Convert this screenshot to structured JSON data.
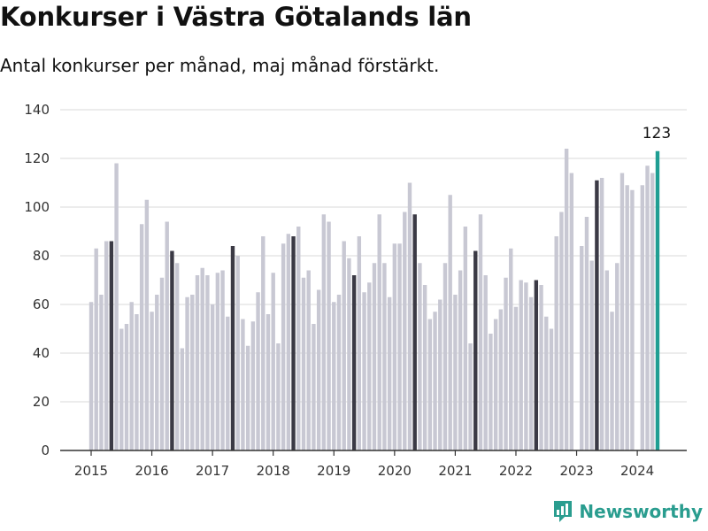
{
  "header": {
    "title": "Konkurser i Västra Götalands län",
    "subtitle": "Antal konkurser per månad, maj månad förstärkt."
  },
  "brand": {
    "name": "Newsworthy"
  },
  "colors": {
    "regular": "#c8c8d3",
    "highlight_may": "#3b3a45",
    "latest": "#1f9e93",
    "grid": "#d9d9d9",
    "axis": "#333333"
  },
  "chart_data": {
    "type": "bar",
    "title": "Konkurser i Västra Götalands län",
    "subtitle": "Antal konkurser per månad, maj månad förstärkt.",
    "xlabel": "",
    "ylabel": "",
    "ylim": [
      0,
      140
    ],
    "yticks": [
      0,
      20,
      40,
      60,
      80,
      100,
      120,
      140
    ],
    "xticks": [
      "2015",
      "2016",
      "2017",
      "2018",
      "2019",
      "2020",
      "2021",
      "2022",
      "2023",
      "2024"
    ],
    "start": "2015-01",
    "highlight_month": 5,
    "grid": true,
    "annotations": [
      {
        "category": "2024-05",
        "text": "123"
      }
    ],
    "categories": [
      "2015-01",
      "2015-02",
      "2015-03",
      "2015-04",
      "2015-05",
      "2015-06",
      "2015-07",
      "2015-08",
      "2015-09",
      "2015-10",
      "2015-11",
      "2015-12",
      "2016-01",
      "2016-02",
      "2016-03",
      "2016-04",
      "2016-05",
      "2016-06",
      "2016-07",
      "2016-08",
      "2016-09",
      "2016-10",
      "2016-11",
      "2016-12",
      "2017-01",
      "2017-02",
      "2017-03",
      "2017-04",
      "2017-05",
      "2017-06",
      "2017-07",
      "2017-08",
      "2017-09",
      "2017-10",
      "2017-11",
      "2017-12",
      "2018-01",
      "2018-02",
      "2018-03",
      "2018-04",
      "2018-05",
      "2018-06",
      "2018-07",
      "2018-08",
      "2018-09",
      "2018-10",
      "2018-11",
      "2018-12",
      "2019-01",
      "2019-02",
      "2019-03",
      "2019-04",
      "2019-05",
      "2019-06",
      "2019-07",
      "2019-08",
      "2019-09",
      "2019-10",
      "2019-11",
      "2019-12",
      "2020-01",
      "2020-02",
      "2020-03",
      "2020-04",
      "2020-05",
      "2020-06",
      "2020-07",
      "2020-08",
      "2020-09",
      "2020-10",
      "2020-11",
      "2020-12",
      "2021-01",
      "2021-02",
      "2021-03",
      "2021-04",
      "2021-05",
      "2021-06",
      "2021-07",
      "2021-08",
      "2021-09",
      "2021-10",
      "2021-11",
      "2021-12",
      "2022-01",
      "2022-02",
      "2022-03",
      "2022-04",
      "2022-05",
      "2022-06",
      "2022-07",
      "2022-08",
      "2022-09",
      "2022-10",
      "2022-11",
      "2022-12",
      "2023-01",
      "2023-02",
      "2023-03",
      "2023-04",
      "2023-05",
      "2023-06",
      "2023-07",
      "2023-08",
      "2023-09",
      "2023-10",
      "2023-11",
      "2023-12",
      "2024-01",
      "2024-02",
      "2024-03",
      "2024-04",
      "2024-05"
    ],
    "values": [
      61,
      83,
      64,
      86,
      86,
      118,
      50,
      52,
      61,
      56,
      93,
      103,
      57,
      64,
      71,
      94,
      82,
      77,
      42,
      63,
      64,
      72,
      75,
      72,
      60,
      73,
      74,
      55,
      84,
      80,
      54,
      43,
      53,
      65,
      88,
      56,
      73,
      44,
      85,
      89,
      88,
      92,
      71,
      74,
      52,
      66,
      97,
      94,
      61,
      64,
      86,
      79,
      72,
      88,
      65,
      69,
      77,
      97,
      77,
      63,
      85,
      85,
      98,
      110,
      97,
      77,
      68,
      54,
      57,
      62,
      77,
      105,
      64,
      74,
      92,
      44,
      82,
      97,
      72,
      48,
      54,
      58,
      71,
      83,
      59,
      70,
      69,
      63,
      70,
      68,
      55,
      50,
      88,
      98,
      124,
      114,
      0,
      84,
      96,
      78,
      111,
      112,
      74,
      57,
      77,
      114,
      109,
      107,
      0,
      109,
      117,
      114,
      123
    ]
  }
}
